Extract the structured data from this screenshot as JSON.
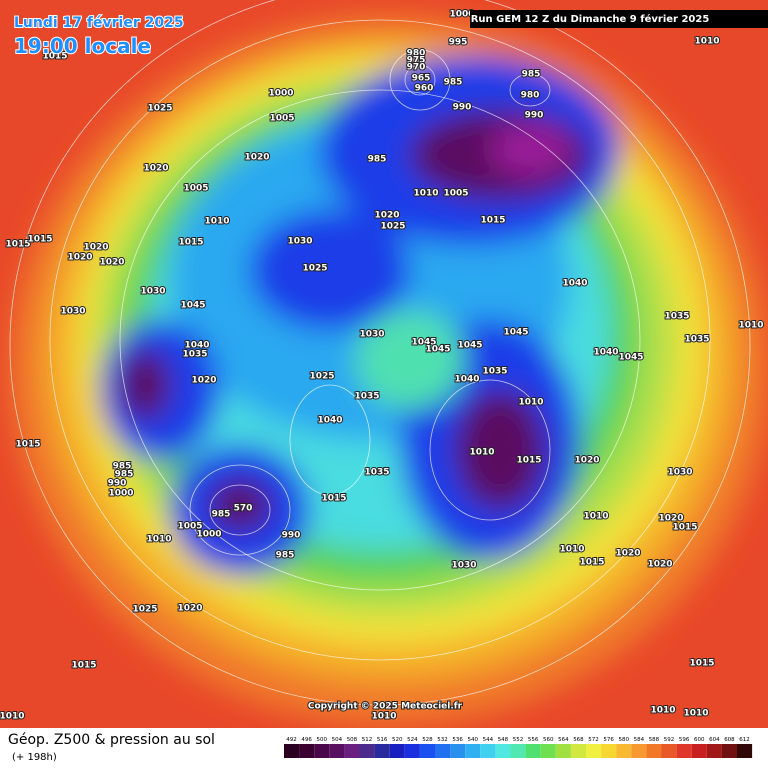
{
  "header": {
    "date": "Lundi 17 février 2025",
    "time": "19:00 locale",
    "run": "Run GEM 12 Z du Dimanche 9 février 2025"
  },
  "footer": {
    "title": "Géop. Z500 & pression au sol",
    "lead": "(+ 198h)",
    "copyright": "Copyright © 2025 Meteociel.fr"
  },
  "colorbar": {
    "ticks": [
      492,
      496,
      500,
      504,
      508,
      512,
      516,
      520,
      524,
      528,
      532,
      536,
      540,
      544,
      548,
      552,
      556,
      560,
      564,
      568,
      572,
      576,
      580,
      584,
      588,
      592,
      596,
      600,
      604,
      608,
      612
    ],
    "colors": [
      "#2a0020",
      "#3a0030",
      "#4a0848",
      "#5a1060",
      "#6a2080",
      "#4a2a8a",
      "#2a2aa0",
      "#1a20c0",
      "#1a30e0",
      "#1a50f0",
      "#2070f0",
      "#2a90f0",
      "#30b0f0",
      "#40d0f0",
      "#50e8e0",
      "#50e8b0",
      "#50e070",
      "#70e050",
      "#a0e040",
      "#d0e840",
      "#f0f040",
      "#f8d830",
      "#f8b830",
      "#f89830",
      "#f07828",
      "#e85828",
      "#e03828",
      "#c82020",
      "#a01818",
      "#701010",
      "#300808"
    ]
  },
  "pressure_labels": [
    "1000",
    "995",
    "1010",
    "1015",
    "1025",
    "980",
    "975",
    "970",
    "965",
    "960",
    "985",
    "985",
    "980",
    "990",
    "990",
    "1000",
    "1005",
    "1020",
    "1020",
    "985",
    "1005",
    "1010",
    "1005",
    "1010",
    "1020",
    "1025",
    "1015",
    "1015",
    "1015",
    "1020",
    "1020",
    "1020",
    "1030",
    "1015",
    "1025",
    "1040",
    "1030",
    "1030",
    "1045",
    "1045",
    "1040",
    "1035",
    "1045",
    "1045",
    "1045",
    "1030",
    "1035",
    "1035",
    "1040",
    "1045",
    "1035",
    "1025",
    "1040",
    "1020",
    "1035",
    "1010",
    "1040",
    "1015",
    "1010",
    "1015",
    "1020",
    "1035",
    "1030",
    "985",
    "985",
    "990",
    "1000",
    "1015",
    "570",
    "985",
    "1005",
    "1000",
    "990",
    "1010",
    "1010",
    "1020",
    "1015",
    "985",
    "1010",
    "1020",
    "1015",
    "1020",
    "1030",
    "1025",
    "1020",
    "1015",
    "1015",
    "1010",
    "1010",
    "1010",
    "1010",
    "1010"
  ]
}
